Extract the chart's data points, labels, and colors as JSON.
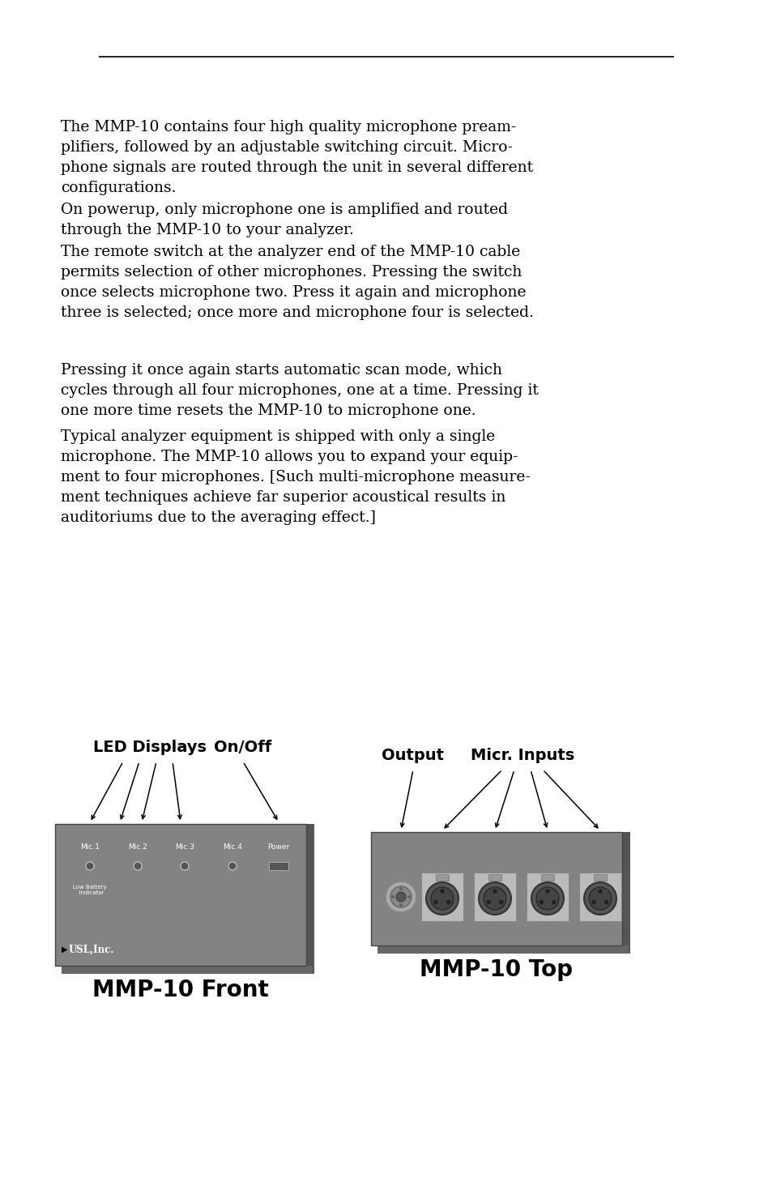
{
  "bg_color": "#ffffff",
  "paragraphs": [
    "The MMP-10 contains four high quality microphone pream-\nplifiers, followed by an adjustable switching circuit. Micro-\nphone signals are routed through the unit in several different\nconfigurations.",
    "On powerup, only microphone one is amplified and routed\nthrough the MMP-10 to your analyzer.",
    "The remote switch at the analyzer end of the MMP-10 cable\npermits selection of other microphones. Pressing the switch\nonce selects microphone two. Press it again and microphone\nthree is selected; once more and microphone four is selected.",
    "Pressing it once again starts automatic scan mode, which\ncycles through all four microphones, one at a time. Pressing it\none more time resets the MMP-10 to microphone one.",
    "Typical analyzer equipment is shipped with only a single\nmicrophone. The MMP-10 allows you to expand your equip-\nment to four microphones. [Such multi-microphone measure-\nment techniques achieve far superior acoustical results in\nauditoriums due to the averaging effect.]"
  ],
  "front_label": "MMP-10 Front",
  "top_label": "MMP-10 Top",
  "led_displays_label": "LED Displays",
  "on_off_label": "On/Off",
  "output_label": "Output",
  "micr_inputs_label": "Micr. Inputs",
  "box_color": "#7f7f7f",
  "text_color_white": "#ffffff",
  "text_color_black": "#000000",
  "font_size_body": 13.5,
  "font_size_title": 20
}
